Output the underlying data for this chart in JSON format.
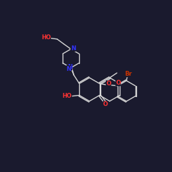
{
  "bg_color": "#1a1a2e",
  "bond_color": "#d8d8d8",
  "atom_colors": {
    "O": "#ff3333",
    "N": "#3333ff",
    "Br": "#cc3300",
    "C": "#d8d8d8"
  },
  "lw": 1.0,
  "fs": 6.0,
  "scale": 0.68
}
